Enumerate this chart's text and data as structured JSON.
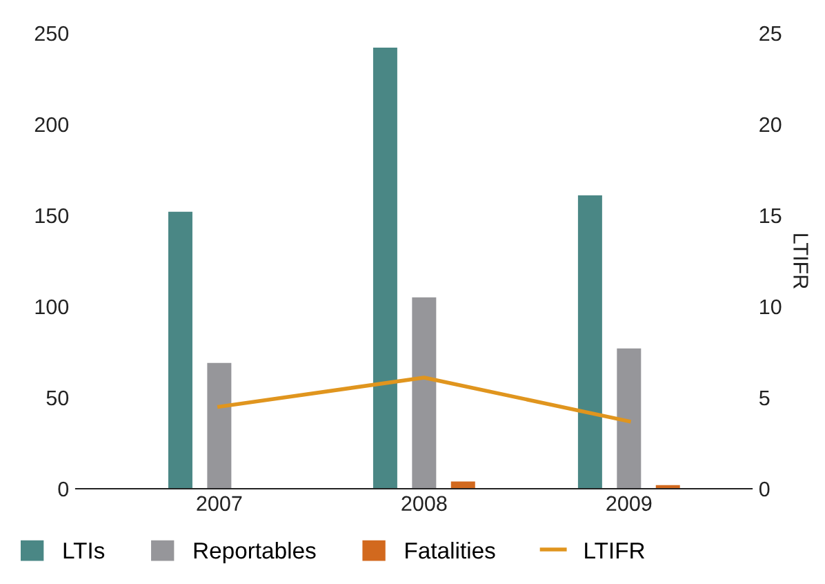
{
  "chart_data": {
    "type": "bar",
    "categories": [
      "2007",
      "2008",
      "2009"
    ],
    "series": [
      {
        "name": "LTIs",
        "color": "#4a8785",
        "values": [
          152,
          242,
          161
        ]
      },
      {
        "name": "Reportables",
        "color": "#96969a",
        "values": [
          69,
          105,
          77
        ]
      },
      {
        "name": "Fatalities",
        "color": "#d2691e",
        "values": [
          null,
          4,
          2
        ]
      },
      {
        "name": "LTIFR",
        "color": "#e0951e",
        "type": "line",
        "axis": "y2",
        "values": [
          4.5,
          6.1,
          3.7
        ]
      }
    ],
    "ylim": [
      0,
      250
    ],
    "yticks": [
      0,
      50,
      100,
      150,
      200,
      250
    ],
    "y2lim": [
      0,
      25
    ],
    "y2ticks": [
      0,
      5,
      10,
      15,
      20,
      25
    ],
    "y2label": "LTIFR",
    "legend": "bottom",
    "grid": false
  }
}
